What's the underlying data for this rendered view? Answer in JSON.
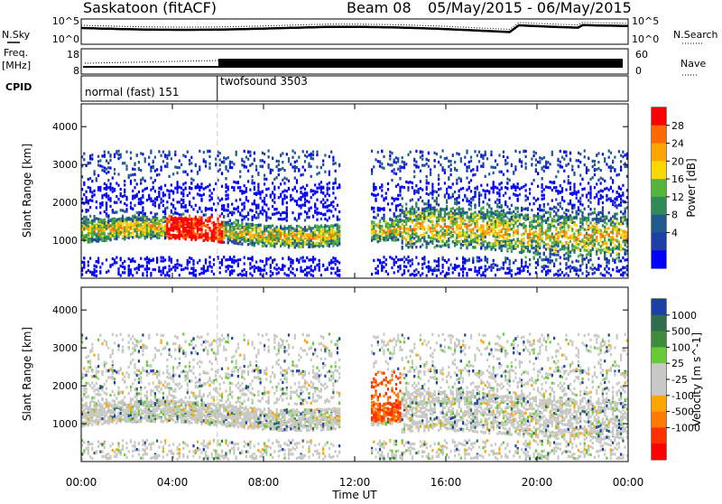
{
  "header": {
    "station": "Saskatoon (fitACF)",
    "beam_label": "Beam 08",
    "date_range": "05/May/2015 - 06/May/2015"
  },
  "left_labels": {
    "nsky": "N.Sky",
    "freq_line1": "Freq.",
    "freq_line2": "[MHz]",
    "cpid": "CPID"
  },
  "right_labels": {
    "nsearch": "N.Search",
    "nave": "Nave"
  },
  "noise_axis": {
    "left_top": "10^5",
    "left_bottom": "10^0",
    "right_top": "10^5",
    "right_bottom": "10^0"
  },
  "freq_axis": {
    "left_top": "18",
    "left_bottom": "8",
    "right_top": "60",
    "right_bottom": "0"
  },
  "cpid_modes": [
    {
      "label": "normal (fast) 151",
      "start_hour": 0,
      "end_hour": 6
    },
    {
      "label": "twofsound 3503",
      "start_hour": 6,
      "end_hour": 24
    }
  ],
  "power_legend": {
    "title": "Power [dB]",
    "ticks": [
      "28",
      "24",
      "20",
      "16",
      "12",
      "8",
      "4"
    ],
    "colors": [
      "#ff0000",
      "#ff6a00",
      "#ffa500",
      "#ffd700",
      "#55b43c",
      "#2e8b57",
      "#1f5a8a",
      "#1c3fa8",
      "#0000ff"
    ]
  },
  "velocity_legend": {
    "title": "Velocity [m s^-1]",
    "ticks": [
      "1000",
      "500",
      "100",
      "25",
      "-25",
      "-100",
      "-500",
      "-1000"
    ],
    "colors": [
      "#1c3fa8",
      "#2e6e4e",
      "#3c8c3c",
      "#66cc33",
      "#c8c8c4",
      "#c8c8c4",
      "#ffa500",
      "#ff7a00",
      "#ff3000",
      "#ff0000"
    ]
  },
  "chart_data": [
    {
      "type": "heatmap",
      "name_panel": "power",
      "ylabel": "Slant Range [km]",
      "yticks": [
        1000,
        2000,
        3000,
        4000
      ],
      "ylim": [
        0,
        4600
      ],
      "xlim": [
        0,
        24
      ],
      "xticks": [
        "00:00",
        "04:00",
        "08:00",
        "12:00",
        "16:00",
        "20:00",
        "00:00"
      ],
      "xtick_hours": [
        0,
        4,
        8,
        12,
        16,
        20,
        24
      ],
      "units": "dB",
      "range": [
        0,
        30
      ]
    },
    {
      "type": "heatmap",
      "name_panel": "velocity",
      "ylabel": "Slant Range [km]",
      "yticks": [
        1000,
        2000,
        3000,
        4000
      ],
      "ylim": [
        0,
        4600
      ],
      "xlim": [
        0,
        24
      ],
      "xticks": [
        "00:00",
        "04:00",
        "08:00",
        "12:00",
        "16:00",
        "20:00",
        "00:00"
      ],
      "xtick_hours": [
        0,
        4,
        8,
        12,
        16,
        20,
        24
      ],
      "xlabel": "Time UT",
      "units": "m s^-1",
      "range": [
        -1000,
        1000
      ]
    }
  ]
}
